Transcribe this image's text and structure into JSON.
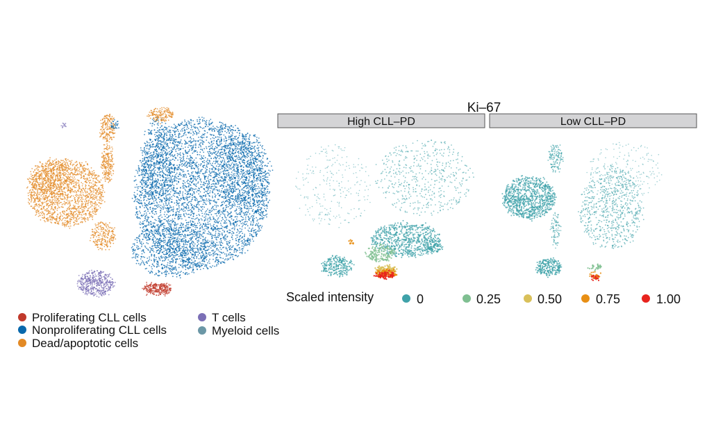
{
  "chart_data": [
    {
      "type": "scatter",
      "subtype": "tSNE",
      "title": "",
      "grid": false,
      "axes": false,
      "legend_position": "bottom",
      "legend": [
        {
          "label": "Proliferating CLL cells",
          "color": "#c0392b"
        },
        {
          "label": "Nonproliferating CLL cells",
          "color": "#0868ac"
        },
        {
          "label": "Dead/apoptotic cells",
          "color": "#e38a25"
        },
        {
          "label": "T cells",
          "color": "#7b6fb6"
        },
        {
          "label": "Myeloid cells",
          "color": "#6b97a6"
        }
      ]
    },
    {
      "type": "scatter",
      "subtype": "tSNE faceted",
      "title": "Ki–67",
      "grid": false,
      "axes": false,
      "facets": [
        "High CLL–PD",
        "Low CLL–PD"
      ],
      "color_scale": {
        "label": "Scaled intensity",
        "ticks": [
          "0",
          "0.25",
          "0.50",
          "0.75",
          "1.00"
        ],
        "colors": [
          "#3fa2a9",
          "#7fbf91",
          "#d9c05a",
          "#e88f14",
          "#e8231e"
        ]
      },
      "legend_position": "bottom"
    }
  ]
}
